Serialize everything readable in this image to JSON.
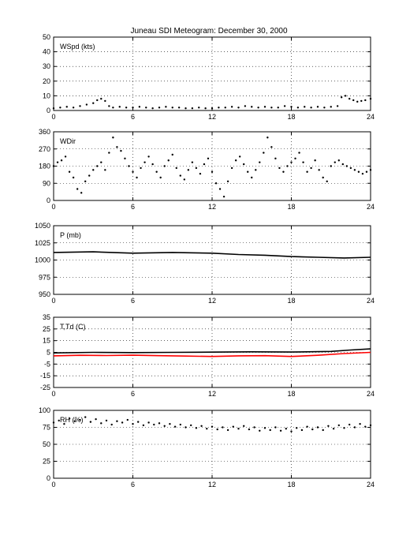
{
  "title": "Juneau SDI Meteogram:  December 30, 2000",
  "chart_data": [
    {
      "type": "scatter",
      "label": "WSpd (kts)",
      "xlim": [
        0,
        24
      ],
      "xticks": [
        0,
        6,
        12,
        18,
        24
      ],
      "ylim": [
        0,
        50
      ],
      "yticks": [
        0,
        10,
        20,
        30,
        40,
        50
      ],
      "grid": true,
      "series": [
        {
          "color": "#000000",
          "points": [
            [
              0,
              1.5
            ],
            [
              0.5,
              2
            ],
            [
              1,
              2.5
            ],
            [
              1.5,
              2
            ],
            [
              2,
              3
            ],
            [
              2.5,
              4
            ],
            [
              3,
              5
            ],
            [
              3.3,
              7
            ],
            [
              3.6,
              8
            ],
            [
              3.9,
              6.5
            ],
            [
              4.2,
              3
            ],
            [
              4.5,
              2
            ],
            [
              5,
              2.5
            ],
            [
              5.5,
              2
            ],
            [
              6,
              2
            ],
            [
              6.5,
              2.5
            ],
            [
              7,
              2
            ],
            [
              7.5,
              1.5
            ],
            [
              8,
              2
            ],
            [
              8.5,
              2.5
            ],
            [
              9,
              2
            ],
            [
              9.5,
              2
            ],
            [
              10,
              1.5
            ],
            [
              10.5,
              1.5
            ],
            [
              11,
              2
            ],
            [
              11.5,
              1.5
            ],
            [
              12,
              1.5
            ],
            [
              12.5,
              2
            ],
            [
              13,
              2
            ],
            [
              13.5,
              2.5
            ],
            [
              14,
              2
            ],
            [
              14.5,
              3
            ],
            [
              15,
              2.5
            ],
            [
              15.5,
              2
            ],
            [
              16,
              2.5
            ],
            [
              16.5,
              2
            ],
            [
              17,
              2
            ],
            [
              17.5,
              3
            ],
            [
              18,
              2.5
            ],
            [
              18.5,
              2
            ],
            [
              19,
              2.5
            ],
            [
              19.5,
              2
            ],
            [
              20,
              2.5
            ],
            [
              20.5,
              2
            ],
            [
              21,
              2.5
            ],
            [
              21.5,
              3
            ],
            [
              21.8,
              9
            ],
            [
              22.1,
              10
            ],
            [
              22.4,
              8
            ],
            [
              22.7,
              7
            ],
            [
              23,
              6
            ],
            [
              23.3,
              6.5
            ],
            [
              23.6,
              7
            ],
            [
              24,
              8
            ]
          ]
        }
      ]
    },
    {
      "type": "scatter",
      "label": "WDir",
      "xlim": [
        0,
        24
      ],
      "xticks": [
        0,
        6,
        12,
        18,
        24
      ],
      "ylim": [
        0,
        360
      ],
      "yticks": [
        0,
        90,
        180,
        270,
        360
      ],
      "grid": true,
      "series": [
        {
          "color": "#000000",
          "points": [
            [
              0,
              180
            ],
            [
              0.3,
              200
            ],
            [
              0.6,
              210
            ],
            [
              0.9,
              230
            ],
            [
              1.2,
              150
            ],
            [
              1.5,
              120
            ],
            [
              1.8,
              60
            ],
            [
              2.1,
              40
            ],
            [
              2.4,
              100
            ],
            [
              2.7,
              130
            ],
            [
              3,
              160
            ],
            [
              3.3,
              180
            ],
            [
              3.6,
              200
            ],
            [
              3.9,
              160
            ],
            [
              4.2,
              250
            ],
            [
              4.5,
              330
            ],
            [
              4.8,
              280
            ],
            [
              5.1,
              260
            ],
            [
              5.4,
              220
            ],
            [
              5.7,
              180
            ],
            [
              6,
              150
            ],
            [
              6.3,
              120
            ],
            [
              6.6,
              170
            ],
            [
              6.9,
              200
            ],
            [
              7.2,
              230
            ],
            [
              7.5,
              190
            ],
            [
              7.8,
              150
            ],
            [
              8.1,
              120
            ],
            [
              8.4,
              180
            ],
            [
              8.7,
              210
            ],
            [
              9,
              240
            ],
            [
              9.3,
              170
            ],
            [
              9.6,
              130
            ],
            [
              9.9,
              110
            ],
            [
              10.2,
              160
            ],
            [
              10.5,
              200
            ],
            [
              10.8,
              170
            ],
            [
              11.1,
              140
            ],
            [
              11.4,
              190
            ],
            [
              11.7,
              220
            ],
            [
              12,
              150
            ],
            [
              12.3,
              90
            ],
            [
              12.6,
              60
            ],
            [
              12.9,
              20
            ],
            [
              13.2,
              100
            ],
            [
              13.5,
              170
            ],
            [
              13.8,
              210
            ],
            [
              14.1,
              230
            ],
            [
              14.4,
              190
            ],
            [
              14.7,
              150
            ],
            [
              15,
              120
            ],
            [
              15.3,
              160
            ],
            [
              15.6,
              200
            ],
            [
              15.9,
              250
            ],
            [
              16.2,
              330
            ],
            [
              16.5,
              280
            ],
            [
              16.8,
              220
            ],
            [
              17.1,
              170
            ],
            [
              17.4,
              150
            ],
            [
              17.7,
              180
            ],
            [
              18,
              200
            ],
            [
              18.3,
              220
            ],
            [
              18.6,
              250
            ],
            [
              18.9,
              200
            ],
            [
              19.2,
              150
            ],
            [
              19.5,
              170
            ],
            [
              19.8,
              210
            ],
            [
              20.1,
              160
            ],
            [
              20.4,
              120
            ],
            [
              20.7,
              100
            ],
            [
              21,
              180
            ],
            [
              21.3,
              200
            ],
            [
              21.6,
              210
            ],
            [
              21.9,
              190
            ],
            [
              22.2,
              180
            ],
            [
              22.5,
              170
            ],
            [
              22.8,
              160
            ],
            [
              23.1,
              150
            ],
            [
              23.4,
              140
            ],
            [
              23.7,
              150
            ],
            [
              24,
              160
            ]
          ]
        }
      ]
    },
    {
      "type": "line",
      "label": "P (mb)",
      "xlim": [
        0,
        24
      ],
      "xticks": [
        0,
        6,
        12,
        18,
        24
      ],
      "ylim": [
        950,
        1050
      ],
      "yticks": [
        950,
        975,
        1000,
        1025,
        1050
      ],
      "grid": true,
      "series": [
        {
          "color": "#000000",
          "points": [
            [
              0,
              1011
            ],
            [
              3,
              1012
            ],
            [
              6,
              1010
            ],
            [
              9,
              1011
            ],
            [
              12,
              1010
            ],
            [
              14,
              1008
            ],
            [
              16,
              1007
            ],
            [
              18,
              1005
            ],
            [
              20,
              1004
            ],
            [
              22,
              1003
            ],
            [
              24,
              1004
            ]
          ]
        }
      ]
    },
    {
      "type": "line",
      "label": "T,Td (C)",
      "xlim": [
        0,
        24
      ],
      "xticks": [
        0,
        6,
        12,
        18,
        24
      ],
      "ylim": [
        -25,
        35
      ],
      "yticks": [
        -25,
        -15,
        -5,
        5,
        15,
        25,
        35
      ],
      "grid": true,
      "series": [
        {
          "color": "#000000",
          "points": [
            [
              0,
              4.5
            ],
            [
              3,
              5
            ],
            [
              6,
              4.8
            ],
            [
              9,
              5
            ],
            [
              12,
              5.2
            ],
            [
              15,
              5.5
            ],
            [
              18,
              5.3
            ],
            [
              21,
              5.8
            ],
            [
              22.5,
              7
            ],
            [
              24,
              8
            ]
          ]
        },
        {
          "color": "#ff0000",
          "points": [
            [
              0,
              2
            ],
            [
              2,
              2.5
            ],
            [
              4,
              2.3
            ],
            [
              6,
              2.6
            ],
            [
              8,
              2.2
            ],
            [
              10,
              1.8
            ],
            [
              12,
              1.5
            ],
            [
              14,
              2
            ],
            [
              16,
              2.2
            ],
            [
              18,
              1.5
            ],
            [
              20,
              2.5
            ],
            [
              22,
              4
            ],
            [
              24,
              5
            ]
          ]
        }
      ]
    },
    {
      "type": "scatter",
      "label": "RH (%)",
      "xlim": [
        0,
        24
      ],
      "xticks": [
        0,
        6,
        12,
        18,
        24
      ],
      "ylim": [
        0,
        100
      ],
      "yticks": [
        0,
        25,
        50,
        75,
        100
      ],
      "grid": true,
      "series": [
        {
          "color": "#000000",
          "points": [
            [
              0,
              82
            ],
            [
              0.4,
              85
            ],
            [
              0.8,
              80
            ],
            [
              1.2,
              88
            ],
            [
              1.6,
              84
            ],
            [
              2,
              86
            ],
            [
              2.4,
              90
            ],
            [
              2.8,
              83
            ],
            [
              3.2,
              87
            ],
            [
              3.6,
              81
            ],
            [
              4,
              85
            ],
            [
              4.4,
              79
            ],
            [
              4.8,
              84
            ],
            [
              5.2,
              82
            ],
            [
              5.6,
              86
            ],
            [
              6,
              80
            ],
            [
              6.4,
              83
            ],
            [
              6.8,
              78
            ],
            [
              7.2,
              82
            ],
            [
              7.6,
              79
            ],
            [
              8,
              81
            ],
            [
              8.4,
              77
            ],
            [
              8.8,
              80
            ],
            [
              9.2,
              76
            ],
            [
              9.6,
              79
            ],
            [
              10,
              75
            ],
            [
              10.4,
              78
            ],
            [
              10.8,
              74
            ],
            [
              11.2,
              77
            ],
            [
              11.6,
              73
            ],
            [
              12,
              76
            ],
            [
              12.4,
              72
            ],
            [
              12.8,
              75
            ],
            [
              13.2,
              71
            ],
            [
              13.6,
              76
            ],
            [
              14,
              73
            ],
            [
              14.4,
              77
            ],
            [
              14.8,
              72
            ],
            [
              15.2,
              75
            ],
            [
              15.6,
              70
            ],
            [
              16,
              74
            ],
            [
              16.4,
              71
            ],
            [
              16.8,
              75
            ],
            [
              17.2,
              70
            ],
            [
              17.6,
              73
            ],
            [
              18,
              69
            ],
            [
              18.4,
              74
            ],
            [
              18.8,
              71
            ],
            [
              19.2,
              76
            ],
            [
              19.6,
              72
            ],
            [
              20,
              75
            ],
            [
              20.4,
              71
            ],
            [
              20.8,
              77
            ],
            [
              21.2,
              73
            ],
            [
              21.6,
              78
            ],
            [
              22,
              74
            ],
            [
              22.4,
              79
            ],
            [
              22.8,
              75
            ],
            [
              23.2,
              80
            ],
            [
              23.6,
              76
            ],
            [
              24,
              78
            ]
          ]
        }
      ]
    }
  ]
}
